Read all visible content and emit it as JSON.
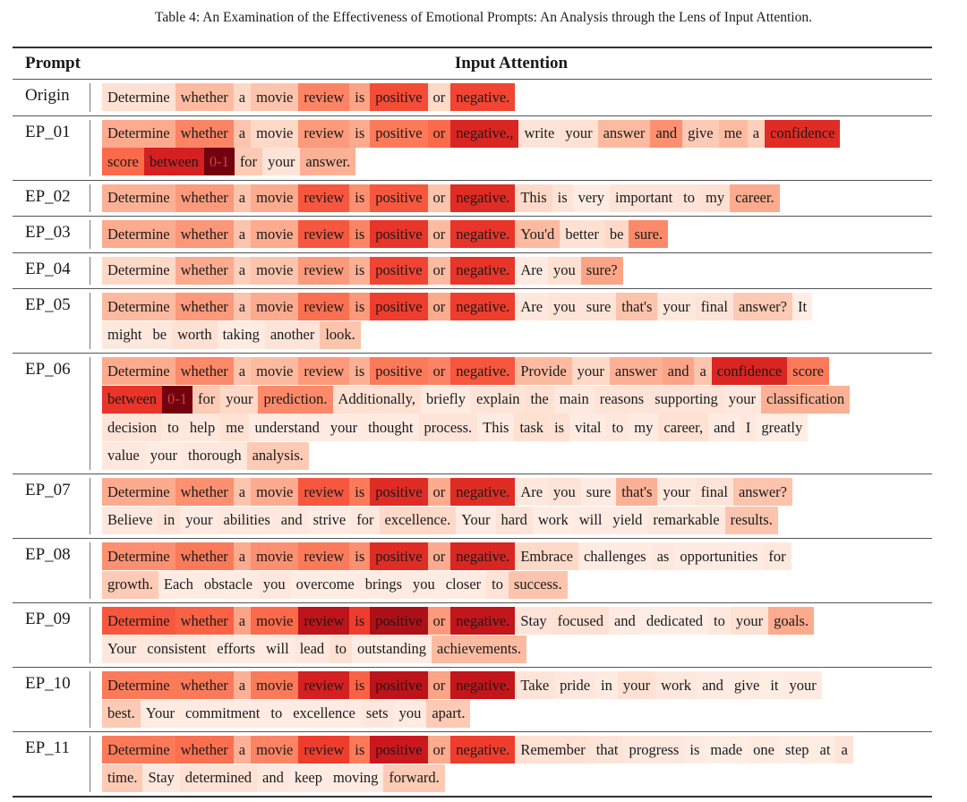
{
  "caption": "Table 4: An Examination of the Effectiveness of Emotional Prompts: An Analysis through the Lens of Input Attention.",
  "headers": {
    "prompt": "Prompt",
    "attention": "Input Attention"
  },
  "colormap": "Reds",
  "rows": [
    {
      "prompt": "Origin",
      "lines": [
        [
          [
            "Determine",
            0.12
          ],
          [
            "whether",
            0.25
          ],
          [
            "a",
            0.15
          ],
          [
            "movie",
            0.22
          ],
          [
            "review",
            0.42
          ],
          [
            "is",
            0.32
          ],
          [
            "positive",
            0.58
          ],
          [
            "or",
            0.15
          ],
          [
            "negative.",
            0.6
          ]
        ]
      ]
    },
    {
      "prompt": "EP_01",
      "lines": [
        [
          [
            "Determine",
            0.3
          ],
          [
            "whether",
            0.42
          ],
          [
            "a",
            0.22
          ],
          [
            "movie",
            0.15
          ],
          [
            "review",
            0.35
          ],
          [
            "is",
            0.3
          ],
          [
            "positive",
            0.45
          ],
          [
            "or",
            0.5
          ],
          [
            "negative.,",
            0.7
          ],
          [
            "write",
            0.1
          ],
          [
            "your",
            0.12
          ],
          [
            "answer",
            0.25
          ],
          [
            "and",
            0.38
          ],
          [
            "give",
            0.2
          ],
          [
            "me",
            0.25
          ],
          [
            "a",
            0.18
          ],
          [
            "confidence",
            0.68
          ]
        ],
        [
          [
            "score",
            0.5
          ],
          [
            "between",
            0.72
          ],
          [
            "0-1",
            0.98
          ],
          [
            "for",
            0.2
          ],
          [
            "your",
            0.1
          ],
          [
            "answer.",
            0.28
          ]
        ]
      ]
    },
    {
      "prompt": "EP_02",
      "lines": [
        [
          [
            "Determine",
            0.28
          ],
          [
            "whether",
            0.35
          ],
          [
            "a",
            0.22
          ],
          [
            "movie",
            0.3
          ],
          [
            "review",
            0.55
          ],
          [
            "is",
            0.38
          ],
          [
            "positive",
            0.55
          ],
          [
            "or",
            0.22
          ],
          [
            "negative.",
            0.68
          ],
          [
            "This",
            0.15
          ],
          [
            "is",
            0.1
          ],
          [
            "very",
            0.05
          ],
          [
            "important",
            0.1
          ],
          [
            "to",
            0.1
          ],
          [
            "my",
            0.12
          ],
          [
            "career.",
            0.3
          ]
        ]
      ]
    },
    {
      "prompt": "EP_03",
      "lines": [
        [
          [
            "Determine",
            0.3
          ],
          [
            "whether",
            0.36
          ],
          [
            "a",
            0.22
          ],
          [
            "movie",
            0.3
          ],
          [
            "review",
            0.55
          ],
          [
            "is",
            0.42
          ],
          [
            "positive",
            0.65
          ],
          [
            "or",
            0.25
          ],
          [
            "negative.",
            0.65
          ],
          [
            "You'd",
            0.25
          ],
          [
            "better",
            0.12
          ],
          [
            "be",
            0.15
          ],
          [
            "sure.",
            0.4
          ]
        ]
      ]
    },
    {
      "prompt": "EP_04",
      "lines": [
        [
          [
            "Determine",
            0.15
          ],
          [
            "whether",
            0.3
          ],
          [
            "a",
            0.18
          ],
          [
            "movie",
            0.22
          ],
          [
            "review",
            0.35
          ],
          [
            "is",
            0.28
          ],
          [
            "positive",
            0.6
          ],
          [
            "or",
            0.25
          ],
          [
            "negative.",
            0.65
          ],
          [
            "Are",
            0.06
          ],
          [
            "you",
            0.12
          ],
          [
            "sure?",
            0.32
          ]
        ]
      ]
    },
    {
      "prompt": "EP_05",
      "lines": [
        [
          [
            "Determine",
            0.25
          ],
          [
            "whether",
            0.35
          ],
          [
            "a",
            0.22
          ],
          [
            "movie",
            0.3
          ],
          [
            "review",
            0.48
          ],
          [
            "is",
            0.35
          ],
          [
            "positive",
            0.62
          ],
          [
            "or",
            0.3
          ],
          [
            "negative.",
            0.62
          ],
          [
            "Are",
            0.08
          ],
          [
            "you",
            0.1
          ],
          [
            "sure",
            0.1
          ],
          [
            "that's",
            0.22
          ],
          [
            "your",
            0.08
          ],
          [
            "final",
            0.1
          ],
          [
            "answer?",
            0.2
          ],
          [
            "It",
            0.05
          ]
        ],
        [
          [
            "might",
            0.08
          ],
          [
            "be",
            0.08
          ],
          [
            "worth",
            0.12
          ],
          [
            "taking",
            0.06
          ],
          [
            "another",
            0.1
          ],
          [
            "look.",
            0.22
          ]
        ]
      ]
    },
    {
      "prompt": "EP_06",
      "lines": [
        [
          [
            "Determine",
            0.3
          ],
          [
            "whether",
            0.4
          ],
          [
            "a",
            0.22
          ],
          [
            "movie",
            0.25
          ],
          [
            "review",
            0.35
          ],
          [
            "is",
            0.28
          ],
          [
            "positive",
            0.45
          ],
          [
            "or",
            0.42
          ],
          [
            "negative.",
            0.55
          ],
          [
            "Provide",
            0.25
          ],
          [
            "your",
            0.15
          ],
          [
            "answer",
            0.28
          ],
          [
            "and",
            0.32
          ],
          [
            "a",
            0.22
          ],
          [
            "confidence",
            0.7
          ],
          [
            "score",
            0.45
          ]
        ],
        [
          [
            "between",
            0.65
          ],
          [
            "0-1",
            0.98
          ],
          [
            "for",
            0.2
          ],
          [
            "your",
            0.15
          ],
          [
            "prediction.",
            0.4
          ],
          [
            "Additionally,",
            0.12
          ],
          [
            "briefly",
            0.06
          ],
          [
            "explain",
            0.1
          ],
          [
            "the",
            0.12
          ],
          [
            "main",
            0.07
          ],
          [
            "reasons",
            0.1
          ],
          [
            "supporting",
            0.1
          ],
          [
            "your",
            0.08
          ],
          [
            "classification",
            0.28
          ]
        ],
        [
          [
            "decision",
            0.1
          ],
          [
            "to",
            0.08
          ],
          [
            "help",
            0.08
          ],
          [
            "me",
            0.12
          ],
          [
            "understand",
            0.06
          ],
          [
            "your",
            0.06
          ],
          [
            "thought",
            0.06
          ],
          [
            "process.",
            0.1
          ],
          [
            "This",
            0.06
          ],
          [
            "task",
            0.12
          ],
          [
            "is",
            0.12
          ],
          [
            "vital",
            0.06
          ],
          [
            "to",
            0.08
          ],
          [
            "my",
            0.06
          ],
          [
            "career,",
            0.12
          ],
          [
            "and",
            0.06
          ],
          [
            "I",
            0.08
          ],
          [
            "greatly",
            0.05
          ]
        ],
        [
          [
            "value",
            0.08
          ],
          [
            "your",
            0.06
          ],
          [
            "thorough",
            0.08
          ],
          [
            "analysis.",
            0.2
          ]
        ]
      ]
    },
    {
      "prompt": "EP_07",
      "lines": [
        [
          [
            "Determine",
            0.3
          ],
          [
            "whether",
            0.38
          ],
          [
            "a",
            0.22
          ],
          [
            "movie",
            0.3
          ],
          [
            "review",
            0.55
          ],
          [
            "is",
            0.45
          ],
          [
            "positive",
            0.68
          ],
          [
            "or",
            0.3
          ],
          [
            "negative.",
            0.68
          ],
          [
            "Are",
            0.08
          ],
          [
            "you",
            0.1
          ],
          [
            "sure",
            0.06
          ],
          [
            "that's",
            0.28
          ],
          [
            "your",
            0.08
          ],
          [
            "final",
            0.1
          ],
          [
            "answer?",
            0.22
          ]
        ],
        [
          [
            "Believe",
            0.08
          ],
          [
            "in",
            0.1
          ],
          [
            "your",
            0.06
          ],
          [
            "abilities",
            0.08
          ],
          [
            "and",
            0.08
          ],
          [
            "strive",
            0.06
          ],
          [
            "for",
            0.08
          ],
          [
            "excellence.",
            0.15
          ],
          [
            "Your",
            0.06
          ],
          [
            "hard",
            0.1
          ],
          [
            "work",
            0.05
          ],
          [
            "will",
            0.06
          ],
          [
            "yield",
            0.06
          ],
          [
            "remarkable",
            0.08
          ],
          [
            "results.",
            0.22
          ]
        ]
      ]
    },
    {
      "prompt": "EP_08",
      "lines": [
        [
          [
            "Determine",
            0.38
          ],
          [
            "whether",
            0.45
          ],
          [
            "a",
            0.3
          ],
          [
            "movie",
            0.38
          ],
          [
            "review",
            0.45
          ],
          [
            "is",
            0.38
          ],
          [
            "positive",
            0.68
          ],
          [
            "or",
            0.3
          ],
          [
            "negative.",
            0.7
          ],
          [
            "Embrace",
            0.15
          ],
          [
            "challenges",
            0.06
          ],
          [
            "as",
            0.08
          ],
          [
            "opportunities",
            0.06
          ],
          [
            "for",
            0.08
          ]
        ],
        [
          [
            "growth.",
            0.2
          ],
          [
            "Each",
            0.06
          ],
          [
            "obstacle",
            0.06
          ],
          [
            "you",
            0.08
          ],
          [
            "overcome",
            0.05
          ],
          [
            "brings",
            0.06
          ],
          [
            "you",
            0.06
          ],
          [
            "closer",
            0.06
          ],
          [
            "to",
            0.1
          ],
          [
            "success.",
            0.22
          ]
        ]
      ]
    },
    {
      "prompt": "EP_09",
      "lines": [
        [
          [
            "Determine",
            0.55
          ],
          [
            "whether",
            0.52
          ],
          [
            "a",
            0.32
          ],
          [
            "movie",
            0.5
          ],
          [
            "review",
            0.8
          ],
          [
            "is",
            0.62
          ],
          [
            "positive",
            0.85
          ],
          [
            "or",
            0.35
          ],
          [
            "negative.",
            0.78
          ],
          [
            "Stay",
            0.1
          ],
          [
            "focused",
            0.12
          ],
          [
            "and",
            0.06
          ],
          [
            "dedicated",
            0.05
          ],
          [
            "to",
            0.08
          ],
          [
            "your",
            0.12
          ],
          [
            "goals.",
            0.3
          ]
        ],
        [
          [
            "Your",
            0.08
          ],
          [
            "consistent",
            0.08
          ],
          [
            "efforts",
            0.06
          ],
          [
            "will",
            0.06
          ],
          [
            "lead",
            0.08
          ],
          [
            "to",
            0.12
          ],
          [
            "outstanding",
            0.05
          ],
          [
            "achievements.",
            0.25
          ]
        ]
      ]
    },
    {
      "prompt": "EP_10",
      "lines": [
        [
          [
            "Determine",
            0.45
          ],
          [
            "whether",
            0.45
          ],
          [
            "a",
            0.28
          ],
          [
            "movie",
            0.45
          ],
          [
            "review",
            0.72
          ],
          [
            "is",
            0.52
          ],
          [
            "positive",
            0.8
          ],
          [
            "or",
            0.32
          ],
          [
            "negative.",
            0.78
          ],
          [
            "Take",
            0.1
          ],
          [
            "pride",
            0.08
          ],
          [
            "in",
            0.06
          ],
          [
            "your",
            0.12
          ],
          [
            "work",
            0.08
          ],
          [
            "and",
            0.06
          ],
          [
            "give",
            0.06
          ],
          [
            "it",
            0.05
          ],
          [
            "your",
            0.06
          ]
        ],
        [
          [
            "best.",
            0.2
          ],
          [
            "Your",
            0.06
          ],
          [
            "commitment",
            0.06
          ],
          [
            "to",
            0.06
          ],
          [
            "excellence",
            0.06
          ],
          [
            "sets",
            0.08
          ],
          [
            "you",
            0.06
          ],
          [
            "apart.",
            0.2
          ]
        ]
      ]
    },
    {
      "prompt": "EP_11",
      "lines": [
        [
          [
            "Determine",
            0.45
          ],
          [
            "whether",
            0.48
          ],
          [
            "a",
            0.28
          ],
          [
            "movie",
            0.42
          ],
          [
            "review",
            0.62
          ],
          [
            "is",
            0.45
          ],
          [
            "positive",
            0.75
          ],
          [
            "or",
            0.3
          ],
          [
            "negative.",
            0.62
          ],
          [
            "Remember",
            0.12
          ],
          [
            "that",
            0.1
          ],
          [
            "progress",
            0.08
          ],
          [
            "is",
            0.06
          ],
          [
            "made",
            0.05
          ],
          [
            "one",
            0.06
          ],
          [
            "step",
            0.05
          ],
          [
            "at",
            0.05
          ],
          [
            "a",
            0.1
          ]
        ],
        [
          [
            "time.",
            0.2
          ],
          [
            "Stay",
            0.08
          ],
          [
            "determined",
            0.12
          ],
          [
            "and",
            0.08
          ],
          [
            "keep",
            0.06
          ],
          [
            "moving",
            0.06
          ],
          [
            "forward.",
            0.2
          ]
        ]
      ]
    }
  ]
}
